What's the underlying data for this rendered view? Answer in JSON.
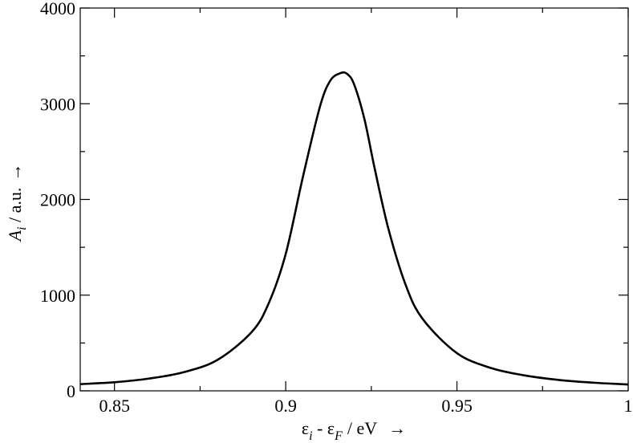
{
  "chart_data": {
    "type": "line",
    "xlabel": {
      "eps1": "ε",
      "sub1": "i",
      "mid": " - ",
      "eps2": "ε",
      "sub2": "F",
      "unit": "/ eV",
      "arrow": "→"
    },
    "ylabel": {
      "main": "A",
      "sub": "i",
      "unit": " / a.u.",
      "arrow": "→"
    },
    "xlim": [
      0.84,
      1.0
    ],
    "ylim": [
      0,
      4000
    ],
    "x_ticks": [
      {
        "value": 0.85,
        "label": "0.85"
      },
      {
        "value": 0.9,
        "label": "0.9"
      },
      {
        "value": 0.95,
        "label": "0.95"
      },
      {
        "value": 1.0,
        "label": "1"
      }
    ],
    "y_ticks": [
      {
        "value": 0,
        "label": "0"
      },
      {
        "value": 1000,
        "label": "1000"
      },
      {
        "value": 2000,
        "label": "2000"
      },
      {
        "value": 3000,
        "label": "3000"
      },
      {
        "value": 4000,
        "label": "4000"
      }
    ],
    "series": [
      {
        "color": "#000000",
        "x": [
          0.84,
          0.85,
          0.86,
          0.87,
          0.88,
          0.89,
          0.895,
          0.9,
          0.905,
          0.91,
          0.913,
          0.916,
          0.918,
          0.92,
          0.923,
          0.926,
          0.93,
          0.935,
          0.94,
          0.95,
          0.96,
          0.97,
          0.98,
          0.99,
          1.0
        ],
        "y": [
          70,
          90,
          128,
          193,
          322,
          612,
          912,
          1430,
          2232,
          2970,
          3240,
          3320,
          3310,
          3200,
          2837,
          2320,
          1691,
          1109,
          751,
          394,
          238,
          160,
          113,
          85,
          66
        ]
      }
    ]
  }
}
